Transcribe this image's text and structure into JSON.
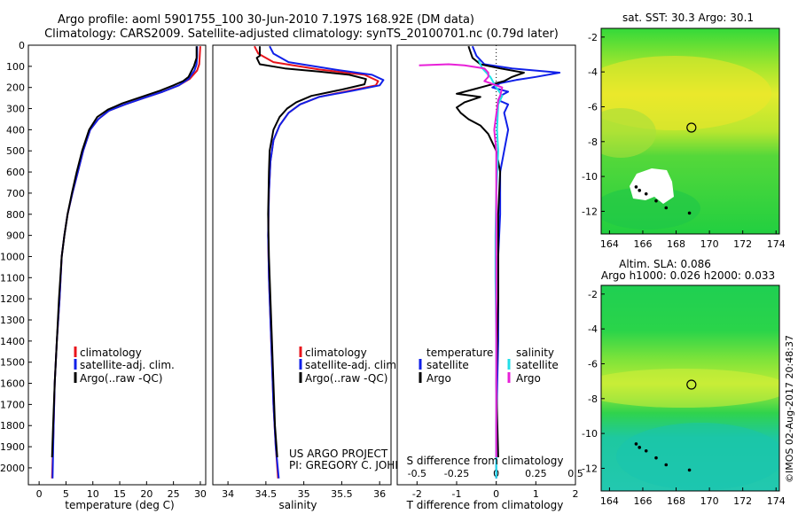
{
  "header": {
    "line1": "Argo profile: aoml 5901755_100 30-Jun-2010 7.197S 168.92E (DM data)",
    "line2": "Climatology: CARS2009. Satellite-adjusted climatology: synTS_20100701.nc (0.79d later)"
  },
  "colors": {
    "climatology": "#e8141b",
    "satellite": "#1020e8",
    "argo": "#000000",
    "sal_satellite": "#22dfe8",
    "sal_argo": "#e820d8"
  },
  "chart_data": [
    {
      "id": "temperature",
      "type": "line",
      "xlabel": "temperature (deg C)",
      "ylabel": "",
      "xlim": [
        -2,
        31
      ],
      "ylim": [
        2080,
        0
      ],
      "xticks": [
        0,
        5,
        10,
        15,
        20,
        25,
        30
      ],
      "yticks": [
        0,
        100,
        200,
        300,
        400,
        500,
        600,
        700,
        800,
        900,
        1000,
        1100,
        1200,
        1300,
        1400,
        1500,
        1600,
        1700,
        1800,
        1900,
        2000
      ],
      "legend": [
        "climatology",
        "satellite-adj. clim.",
        "Argo(..raw -QC)"
      ],
      "series": [
        {
          "name": "climatology",
          "color_key": "climatology",
          "points": [
            [
              30.0,
              5
            ],
            [
              29.9,
              50
            ],
            [
              29.8,
              90
            ],
            [
              29.4,
              120
            ],
            [
              28.0,
              160
            ],
            [
              26.0,
              190
            ],
            [
              23.0,
              220
            ],
            [
              19.5,
              250
            ],
            [
              16.0,
              280
            ],
            [
              13.0,
              310
            ],
            [
              11.0,
              350
            ],
            [
              9.5,
              400
            ],
            [
              8.2,
              500
            ],
            [
              7.2,
              600
            ],
            [
              6.2,
              700
            ],
            [
              5.3,
              800
            ],
            [
              4.7,
              900
            ],
            [
              4.2,
              1000
            ],
            [
              3.8,
              1200
            ],
            [
              3.3,
              1400
            ],
            [
              2.9,
              1600
            ],
            [
              2.7,
              1800
            ],
            [
              2.4,
              2050
            ]
          ]
        },
        {
          "name": "satellite-adj. clim.",
          "color_key": "satellite",
          "points": [
            [
              29.4,
              5
            ],
            [
              29.4,
              50
            ],
            [
              29.3,
              90
            ],
            [
              28.9,
              120
            ],
            [
              27.8,
              160
            ],
            [
              26.0,
              190
            ],
            [
              23.0,
              220
            ],
            [
              19.5,
              250
            ],
            [
              16.0,
              280
            ],
            [
              13.0,
              310
            ],
            [
              11.0,
              350
            ],
            [
              9.5,
              400
            ],
            [
              8.2,
              500
            ],
            [
              7.2,
              600
            ],
            [
              6.2,
              700
            ],
            [
              5.3,
              800
            ],
            [
              4.7,
              900
            ],
            [
              4.2,
              1000
            ],
            [
              3.8,
              1200
            ],
            [
              3.3,
              1400
            ],
            [
              2.9,
              1600
            ],
            [
              2.7,
              1800
            ],
            [
              2.5,
              2050
            ]
          ]
        },
        {
          "name": "Argo(..raw -QC)",
          "color_key": "argo",
          "points": [
            [
              29.3,
              5
            ],
            [
              29.3,
              60
            ],
            [
              28.8,
              100
            ],
            [
              28.2,
              130
            ],
            [
              27.8,
              150
            ],
            [
              26.8,
              170
            ],
            [
              25.0,
              190
            ],
            [
              22.5,
              215
            ],
            [
              19.0,
              245
            ],
            [
              15.5,
              275
            ],
            [
              12.8,
              305
            ],
            [
              10.8,
              340
            ],
            [
              9.3,
              400
            ],
            [
              8.0,
              500
            ],
            [
              7.0,
              600
            ],
            [
              6.1,
              700
            ],
            [
              5.3,
              800
            ],
            [
              4.7,
              900
            ],
            [
              4.2,
              1000
            ],
            [
              3.7,
              1200
            ],
            [
              3.3,
              1400
            ],
            [
              2.9,
              1600
            ],
            [
              2.6,
              1800
            ],
            [
              2.4,
              1950
            ]
          ]
        }
      ]
    },
    {
      "id": "salinity",
      "type": "line",
      "xlabel": "salinity",
      "xlim": [
        33.8,
        36.15
      ],
      "ylim": [
        2080,
        0
      ],
      "xticks": [
        34,
        34.5,
        35,
        35.5,
        36
      ],
      "yticks": [
        0,
        100,
        200,
        300,
        400,
        500,
        600,
        700,
        800,
        900,
        1000,
        1100,
        1200,
        1300,
        1400,
        1500,
        1600,
        1700,
        1800,
        1900,
        2000
      ],
      "legend": [
        "climatology",
        "satellite-adj. clim.",
        "Argo(..raw -QC)"
      ],
      "series": [
        {
          "name": "climatology",
          "color_key": "climatology",
          "points": [
            [
              34.35,
              5
            ],
            [
              34.4,
              40
            ],
            [
              34.6,
              80
            ],
            [
              35.2,
              115
            ],
            [
              35.8,
              140
            ],
            [
              35.98,
              170
            ],
            [
              35.95,
              190
            ],
            [
              35.6,
              215
            ],
            [
              35.2,
              245
            ],
            [
              34.95,
              280
            ],
            [
              34.8,
              320
            ],
            [
              34.68,
              380
            ],
            [
              34.6,
              450
            ],
            [
              34.56,
              550
            ],
            [
              34.54,
              700
            ],
            [
              34.53,
              900
            ],
            [
              34.54,
              1100
            ],
            [
              34.56,
              1300
            ],
            [
              34.58,
              1500
            ],
            [
              34.6,
              1700
            ],
            [
              34.63,
              1900
            ],
            [
              34.66,
              2050
            ]
          ]
        },
        {
          "name": "satellite-adj. clim.",
          "color_key": "satellite",
          "points": [
            [
              34.55,
              5
            ],
            [
              34.6,
              40
            ],
            [
              34.8,
              80
            ],
            [
              35.4,
              115
            ],
            [
              35.9,
              140
            ],
            [
              36.05,
              165
            ],
            [
              36.0,
              190
            ],
            [
              35.65,
              215
            ],
            [
              35.2,
              245
            ],
            [
              34.95,
              280
            ],
            [
              34.8,
              320
            ],
            [
              34.68,
              380
            ],
            [
              34.6,
              450
            ],
            [
              34.56,
              550
            ],
            [
              34.54,
              700
            ],
            [
              34.53,
              900
            ],
            [
              34.54,
              1100
            ],
            [
              34.56,
              1300
            ],
            [
              34.58,
              1500
            ],
            [
              34.6,
              1700
            ],
            [
              34.63,
              1900
            ],
            [
              34.67,
              2050
            ]
          ]
        },
        {
          "name": "Argo(..raw -QC)",
          "color_key": "argo",
          "points": [
            [
              34.42,
              5
            ],
            [
              34.42,
              50
            ],
            [
              34.38,
              60
            ],
            [
              34.42,
              90
            ],
            [
              34.75,
              110
            ],
            [
              35.2,
              125
            ],
            [
              35.6,
              140
            ],
            [
              35.82,
              160
            ],
            [
              35.8,
              185
            ],
            [
              35.5,
              210
            ],
            [
              35.1,
              240
            ],
            [
              34.9,
              270
            ],
            [
              34.78,
              300
            ],
            [
              34.68,
              340
            ],
            [
              34.6,
              400
            ],
            [
              34.55,
              500
            ],
            [
              34.54,
              600
            ],
            [
              34.53,
              800
            ],
            [
              34.54,
              1000
            ],
            [
              34.56,
              1200
            ],
            [
              34.58,
              1400
            ],
            [
              34.6,
              1600
            ],
            [
              34.62,
              1800
            ],
            [
              34.65,
              1950
            ]
          ]
        }
      ]
    },
    {
      "id": "difference",
      "type": "line",
      "xlabel": "T difference from climatology",
      "xlabel_top": "S difference from climatology",
      "xlim": [
        -2.5,
        2
      ],
      "ylim": [
        2080,
        0
      ],
      "xticks": [
        -2,
        -1,
        0,
        1,
        2
      ],
      "xticks_top": [
        -0.5,
        -0.25,
        0,
        0.25,
        0.5
      ],
      "legend_titles": [
        "temperature",
        "salinity"
      ],
      "legend": [
        "satellite",
        "Argo",
        "satellite",
        "Argo"
      ],
      "series": [
        {
          "name": "temperature satellite",
          "color_key": "satellite",
          "points": [
            [
              -0.6,
              5
            ],
            [
              -0.5,
              50
            ],
            [
              -0.3,
              90
            ],
            [
              0.4,
              110
            ],
            [
              1.6,
              130
            ],
            [
              1.0,
              150
            ],
            [
              0.5,
              165
            ],
            [
              0.1,
              180
            ],
            [
              -0.1,
              200
            ],
            [
              0.3,
              220
            ],
            [
              0.1,
              240
            ],
            [
              0.05,
              260
            ],
            [
              0.3,
              280
            ],
            [
              0.2,
              320
            ],
            [
              0.3,
              400
            ],
            [
              0.2,
              500
            ],
            [
              0.1,
              600
            ],
            [
              0.1,
              800
            ],
            [
              0.05,
              1000
            ],
            [
              0.05,
              1400
            ],
            [
              0.0,
              1800
            ],
            [
              0.0,
              2050
            ]
          ]
        },
        {
          "name": "temperature Argo",
          "color_key": "argo",
          "points": [
            [
              -0.7,
              5
            ],
            [
              -0.6,
              60
            ],
            [
              -0.4,
              90
            ],
            [
              0.1,
              110
            ],
            [
              0.7,
              130
            ],
            [
              0.4,
              150
            ],
            [
              0.2,
              170
            ],
            [
              -0.2,
              190
            ],
            [
              -0.6,
              210
            ],
            [
              -1.0,
              230
            ],
            [
              -0.4,
              245
            ],
            [
              -0.8,
              270
            ],
            [
              -1.0,
              295
            ],
            [
              -0.9,
              320
            ],
            [
              -0.7,
              350
            ],
            [
              -0.4,
              380
            ],
            [
              -0.2,
              420
            ],
            [
              0.0,
              500
            ],
            [
              0.1,
              600
            ],
            [
              0.05,
              800
            ],
            [
              0.05,
              1200
            ],
            [
              0.0,
              1600
            ],
            [
              0.05,
              1950
            ]
          ]
        },
        {
          "name": "salinity satellite",
          "color_key": "sal_satellite",
          "points": [
            [
              -0.45,
              70
            ],
            [
              -0.35,
              110
            ],
            [
              -0.15,
              150
            ],
            [
              0.0,
              200
            ],
            [
              0.15,
              240
            ],
            [
              0.05,
              280
            ],
            [
              0.02,
              400
            ],
            [
              0.05,
              500
            ],
            [
              0.0,
              700
            ],
            [
              -0.02,
              900
            ],
            [
              -0.02,
              1100
            ],
            [
              0.0,
              1400
            ],
            [
              0.0,
              1700
            ],
            [
              0.0,
              2050
            ]
          ]
        },
        {
          "name": "salinity Argo",
          "color_key": "sal_argo",
          "points": [
            [
              -1.95,
              95
            ],
            [
              -1.2,
              90
            ],
            [
              -0.8,
              95
            ],
            [
              -0.3,
              110
            ],
            [
              -0.2,
              130
            ],
            [
              -0.2,
              150
            ],
            [
              -0.3,
              170
            ],
            [
              0.15,
              200
            ],
            [
              0.1,
              240
            ],
            [
              0.05,
              260
            ],
            [
              0.02,
              300
            ],
            [
              -0.05,
              400
            ],
            [
              0.0,
              500
            ],
            [
              0.0,
              700
            ],
            [
              0.0,
              1000
            ],
            [
              0.0,
              1400
            ],
            [
              0.0,
              1950
            ]
          ]
        }
      ]
    },
    {
      "id": "sst_map",
      "type": "heatmap",
      "title": "sat. SST: 30.3 Argo: 30.1",
      "xlim": [
        163.5,
        174.2
      ],
      "ylim": [
        -13.3,
        -1.5
      ],
      "xticks": [
        164,
        166,
        168,
        170,
        172,
        174
      ],
      "yticks": [
        -2,
        -4,
        -6,
        -8,
        -10,
        -12
      ],
      "marker": {
        "x": 168.92,
        "y": -7.197
      },
      "track": [
        [
          165.6,
          -10.6
        ],
        [
          165.8,
          -10.8
        ],
        [
          166.2,
          -11.0
        ],
        [
          166.8,
          -11.4
        ],
        [
          167.4,
          -11.8
        ],
        [
          168.8,
          -12.1
        ]
      ]
    },
    {
      "id": "sla_map",
      "type": "heatmap",
      "title": "Altim. SLA: 0.086",
      "subtitle": "Argo h1000: 0.026 h2000: 0.033",
      "xlim": [
        163.5,
        174.2
      ],
      "ylim": [
        -13.3,
        -1.5
      ],
      "xticks": [
        164,
        166,
        168,
        170,
        172,
        174
      ],
      "yticks": [
        -2,
        -4,
        -6,
        -8,
        -10,
        -12
      ],
      "marker": {
        "x": 168.92,
        "y": -7.197
      },
      "track": [
        [
          165.6,
          -10.6
        ],
        [
          165.8,
          -10.8
        ],
        [
          166.2,
          -11.0
        ],
        [
          166.8,
          -11.4
        ],
        [
          167.4,
          -11.8
        ],
        [
          168.8,
          -12.1
        ]
      ]
    }
  ],
  "credits": {
    "project": "US ARGO PROJECT",
    "pi": "PI: GREGORY C. JOHNSON",
    "stamp": "©IMOS 02-Aug-2017 20:48:37"
  }
}
